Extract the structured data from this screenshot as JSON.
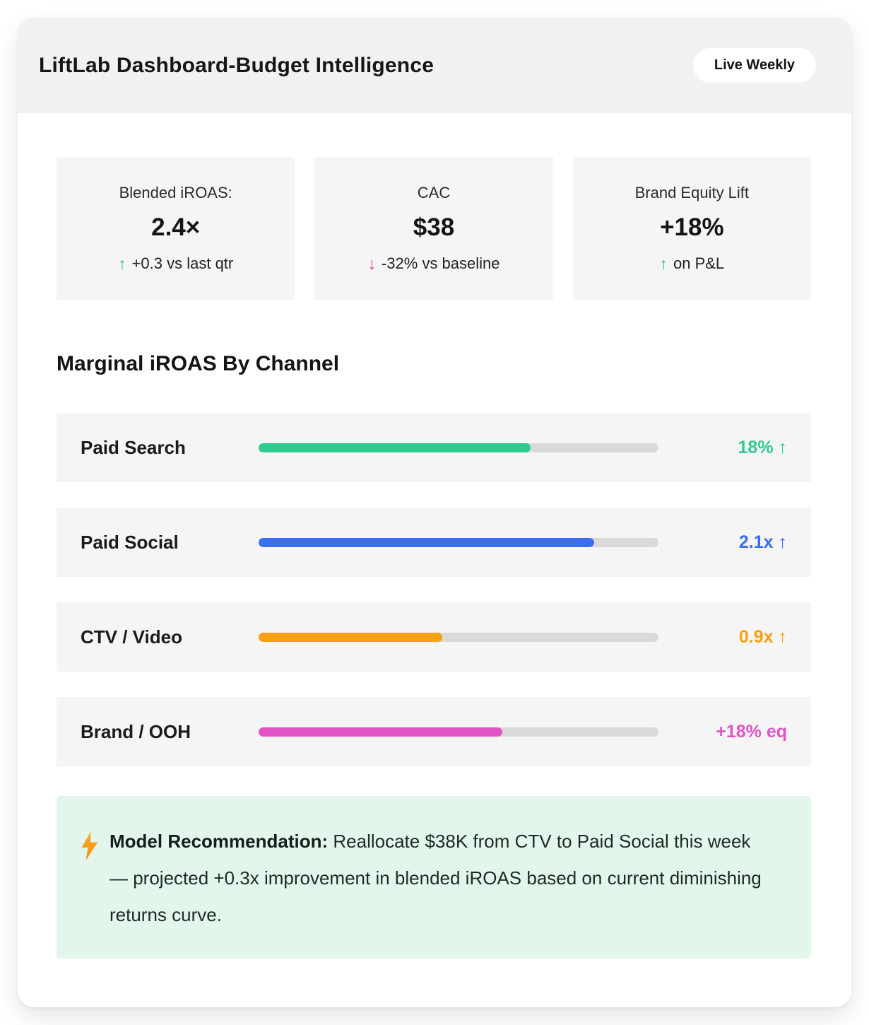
{
  "header": {
    "title": "LiftLab Dashboard-Budget Intelligence",
    "badge": "Live Weekly"
  },
  "kpis": [
    {
      "label": "Blended iROAS:",
      "value": "2.4×",
      "arrow": "↑",
      "trend": "up",
      "delta_text": "+0.3 vs last qtr"
    },
    {
      "label": "CAC",
      "value": "$38",
      "arrow": "↓",
      "trend": "down",
      "delta_text": "-32% vs baseline"
    },
    {
      "label": "Brand Equity Lift",
      "value": "+18%",
      "arrow": "↑",
      "trend": "up",
      "delta_text": "on P&L"
    }
  ],
  "section": {
    "title": "Marginal iROAS By Channel"
  },
  "chart_data": {
    "type": "bar",
    "title": "Marginal iROAS By Channel",
    "categories": [
      "Paid Search",
      "Paid Social",
      "CTV / Video",
      "Brand / OOH"
    ],
    "values": [
      "18% ↑",
      "2.1x ↑",
      "0.9x ↑",
      "+18% eq"
    ],
    "fill_pct": [
      68,
      84,
      46,
      61
    ],
    "bar_colors": [
      "#2dcb8d",
      "#3b6df0",
      "#f7a011",
      "#e353c8"
    ],
    "track_color": "#d9d9d9",
    "orientation": "horizontal"
  },
  "recommendation": {
    "icon": "lightning-icon",
    "title": "Model Recommendation:",
    "body": "Reallocate $38K from CTV to Paid Social this week — projected +0.3x improvement in blended iROAS based on current diminishing returns curve.",
    "background": "#e2f6ec",
    "icon_color": "#f7a011"
  },
  "colors": {
    "trend_up": "#2dbd88",
    "trend_down": "#e8404f",
    "header_band": "#f1f1f2",
    "tile_background": "#f5f5f5"
  }
}
